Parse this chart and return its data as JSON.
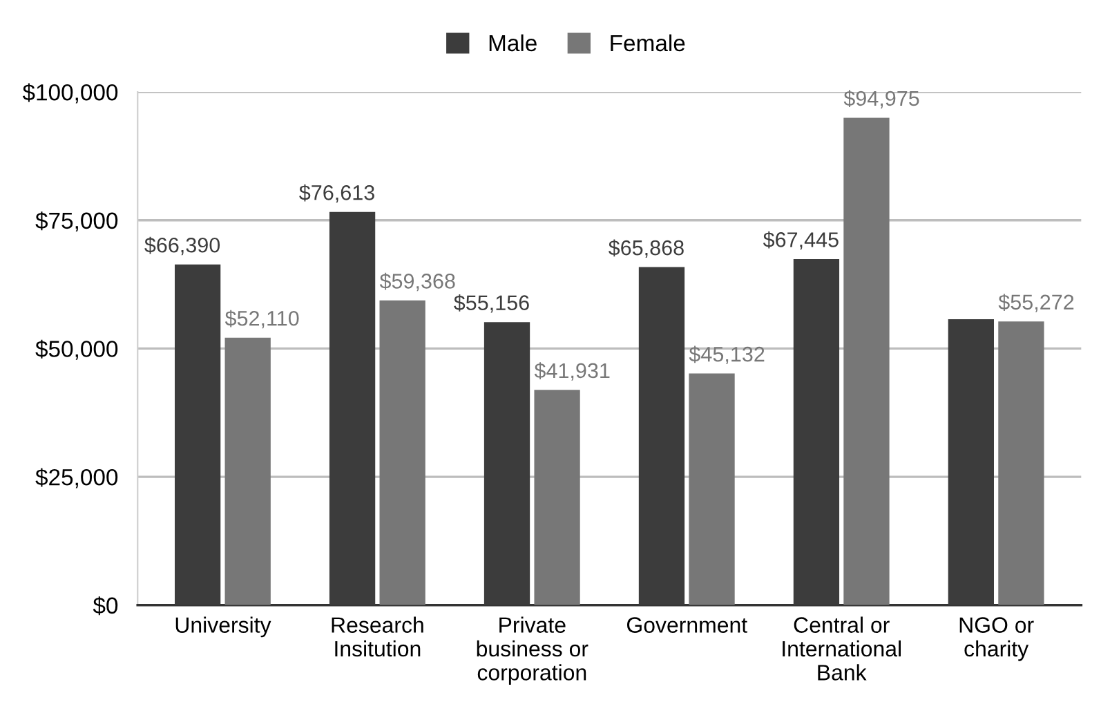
{
  "chart_data": {
    "type": "bar",
    "categories": [
      "University",
      "Research\nInsitution",
      "Private\nbusiness or\ncorporation",
      "Government",
      "Central or\nInternational\nBank",
      "NGO or\ncharity"
    ],
    "series": [
      {
        "name": "Male",
        "color": "#3c3c3c",
        "values": [
          66390,
          76613,
          55156,
          65868,
          67445,
          55700
        ],
        "value_labels": [
          "$66,390",
          "$76,613",
          "$55,156",
          "$65,868",
          "$67,445",
          null
        ]
      },
      {
        "name": "Female",
        "color": "#777777",
        "values": [
          52110,
          59368,
          41931,
          45132,
          94975,
          55272
        ],
        "value_labels": [
          "$52,110",
          "$59,368",
          "$41,931",
          "$45,132",
          "$94,975",
          "$55,272"
        ]
      }
    ],
    "ylim": [
      0,
      100000
    ],
    "yticks": [
      {
        "value": 0,
        "label": "$0"
      },
      {
        "value": 25000,
        "label": "$25,000"
      },
      {
        "value": 50000,
        "label": "$50,000"
      },
      {
        "value": 75000,
        "label": "$75,000"
      },
      {
        "value": 100000,
        "label": "$100,000"
      }
    ],
    "grid": "y",
    "legend": "top"
  }
}
